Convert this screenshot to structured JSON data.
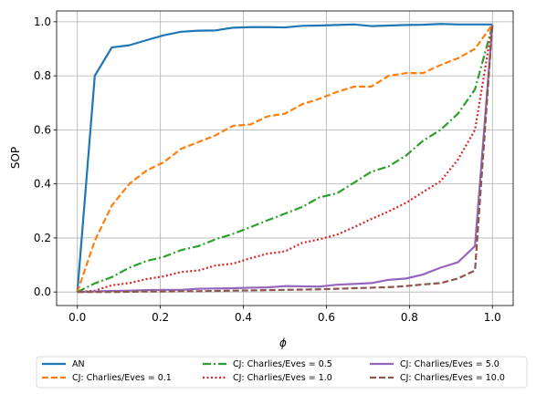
{
  "chart_data": {
    "type": "line",
    "xlabel": "ϕ",
    "ylabel": "SOP",
    "xlim": [
      -0.05,
      1.05
    ],
    "ylim": [
      -0.05,
      1.04
    ],
    "xticks": [
      "0.0",
      "0.2",
      "0.4",
      "0.6",
      "0.8",
      "1.0"
    ],
    "yticks": [
      "0.0",
      "0.2",
      "0.4",
      "0.6",
      "0.8",
      "1.0"
    ],
    "grid": true,
    "legend_position": "bottom, below plot, 3 columns",
    "x": [
      0.0,
      0.042,
      0.083,
      0.125,
      0.167,
      0.208,
      0.25,
      0.292,
      0.333,
      0.375,
      0.417,
      0.458,
      0.5,
      0.542,
      0.583,
      0.625,
      0.667,
      0.708,
      0.75,
      0.792,
      0.833,
      0.875,
      0.917,
      0.958,
      1.0
    ],
    "series": [
      {
        "name": "AN",
        "color": "#1f77b4",
        "style": "solid",
        "values": [
          0.0,
          0.8,
          0.905,
          0.913,
          0.932,
          0.95,
          0.963,
          0.967,
          0.968,
          0.978,
          0.98,
          0.98,
          0.979,
          0.985,
          0.986,
          0.988,
          0.99,
          0.984,
          0.986,
          0.988,
          0.989,
          0.992,
          0.99,
          0.99,
          0.99
        ]
      },
      {
        "name": "CJ: Charlies/Eves = 0.1",
        "color": "#ff7f0e",
        "style": "dashed",
        "values": [
          0.0,
          0.19,
          0.32,
          0.4,
          0.45,
          0.48,
          0.53,
          0.555,
          0.58,
          0.615,
          0.62,
          0.65,
          0.66,
          0.695,
          0.715,
          0.74,
          0.76,
          0.76,
          0.8,
          0.81,
          0.81,
          0.84,
          0.865,
          0.9,
          0.99
        ]
      },
      {
        "name": "CJ: Charlies/Eves = 0.5",
        "color": "#2ca02c",
        "style": "dashdot",
        "values": [
          0.0,
          0.032,
          0.055,
          0.09,
          0.115,
          0.13,
          0.155,
          0.17,
          0.195,
          0.215,
          0.24,
          0.265,
          0.29,
          0.315,
          0.35,
          0.365,
          0.405,
          0.445,
          0.465,
          0.505,
          0.56,
          0.6,
          0.66,
          0.75,
          0.985
        ]
      },
      {
        "name": "CJ: Charlies/Eves = 1.0",
        "color": "#d62728",
        "style": "dotted",
        "values": [
          0.0,
          0.005,
          0.025,
          0.033,
          0.048,
          0.058,
          0.074,
          0.08,
          0.098,
          0.105,
          0.125,
          0.142,
          0.15,
          0.182,
          0.195,
          0.212,
          0.24,
          0.27,
          0.298,
          0.33,
          0.37,
          0.41,
          0.49,
          0.6,
          0.99
        ]
      },
      {
        "name": "CJ: Charlies/Eves = 5.0",
        "color": "#9467bd",
        "style": "solid",
        "values": [
          0.0,
          0.002,
          0.004,
          0.005,
          0.007,
          0.008,
          0.008,
          0.012,
          0.013,
          0.014,
          0.016,
          0.017,
          0.022,
          0.021,
          0.02,
          0.027,
          0.03,
          0.033,
          0.045,
          0.05,
          0.065,
          0.09,
          0.11,
          0.17,
          0.99
        ]
      },
      {
        "name": "CJ: Charlies/Eves = 10.0",
        "color": "#8c564b",
        "style": "dashed",
        "values": [
          0.0,
          0.0,
          0.0,
          0.001,
          0.002,
          0.002,
          0.003,
          0.003,
          0.004,
          0.005,
          0.006,
          0.007,
          0.008,
          0.009,
          0.01,
          0.012,
          0.014,
          0.016,
          0.018,
          0.022,
          0.028,
          0.033,
          0.05,
          0.08,
          0.99
        ]
      }
    ]
  }
}
